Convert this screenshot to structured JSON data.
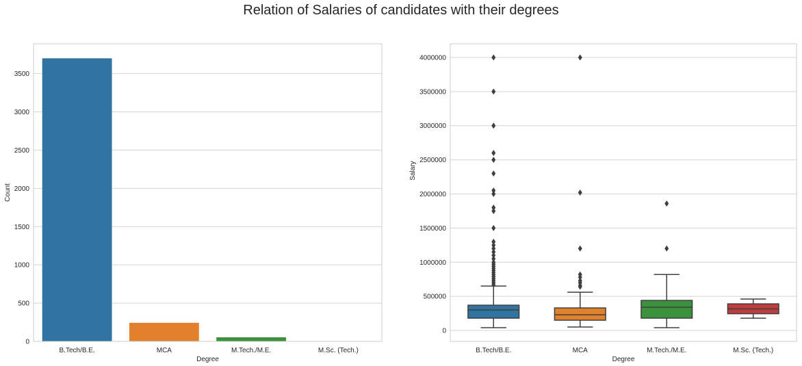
{
  "figure": {
    "title": "Relation of Salaries of candidates with their degrees"
  },
  "chart_data": [
    {
      "type": "bar",
      "title": "",
      "xlabel": "Degree",
      "ylabel": "Count",
      "categories": [
        "B.Tech/B.E.",
        "MCA",
        "M.Tech./M.E.",
        "M.Sc. (Tech.)"
      ],
      "values": [
        3700,
        243,
        53,
        2
      ],
      "colors": [
        "#3274a1",
        "#e1812c",
        "#3a923a",
        "#c03d3e"
      ],
      "ylim": [
        0,
        3890
      ],
      "yticks": [
        0,
        500,
        1000,
        1500,
        2000,
        2500,
        3000,
        3500
      ],
      "grid": "horizontal"
    },
    {
      "type": "box",
      "title": "",
      "xlabel": "Degree",
      "ylabel": "Salary",
      "categories": [
        "B.Tech/B.E.",
        "MCA",
        "M.Tech./M.E.",
        "M.Sc. (Tech.)"
      ],
      "colors": [
        "#3274a1",
        "#e1812c",
        "#3a923a",
        "#c03d3e"
      ],
      "ylim": [
        -160000,
        4200000
      ],
      "yticks": [
        0,
        500000,
        1000000,
        1500000,
        2000000,
        2500000,
        3000000,
        3500000,
        4000000
      ],
      "grid": "horizontal",
      "boxes": [
        {
          "name": "B.Tech/B.E.",
          "whisker_low": 40000,
          "q1": 180000,
          "median": 300000,
          "q3": 370000,
          "whisker_high": 650000,
          "outliers": [
            4000000,
            3500000,
            3000000,
            2600000,
            2500000,
            2300000,
            2050000,
            2000000,
            1800000,
            1750000,
            1500000,
            1300000,
            1250000,
            1200000,
            1150000,
            1100000,
            1050000,
            1000000,
            970000,
            940000,
            910000,
            880000,
            850000,
            820000,
            790000,
            760000,
            730000,
            700000,
            670000
          ]
        },
        {
          "name": "MCA",
          "whisker_low": 50000,
          "q1": 150000,
          "median": 230000,
          "q3": 330000,
          "whisker_high": 560000,
          "outliers": [
            4000000,
            2020000,
            1200000,
            820000,
            780000,
            730000,
            700000,
            660000,
            640000
          ]
        },
        {
          "name": "M.Tech./M.E.",
          "whisker_low": 40000,
          "q1": 180000,
          "median": 340000,
          "q3": 440000,
          "whisker_high": 820000,
          "outliers": [
            1860000,
            1200000
          ]
        },
        {
          "name": "M.Sc. (Tech.)",
          "whisker_low": 180000,
          "q1": 245000,
          "median": 315000,
          "q3": 390000,
          "whisker_high": 460000,
          "outliers": []
        }
      ]
    }
  ]
}
